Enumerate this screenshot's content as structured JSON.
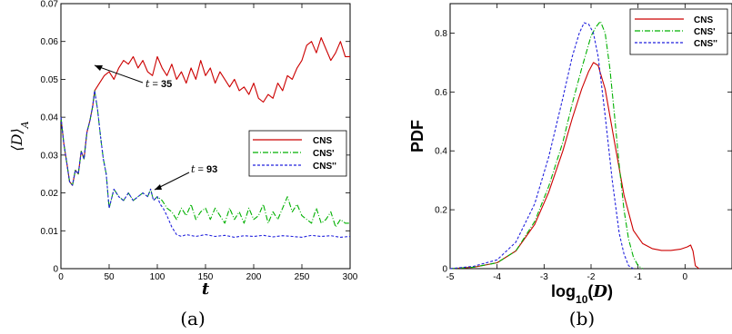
{
  "chart_data": [
    {
      "type": "line",
      "panel_label": "(a)",
      "xlabel": "t",
      "ylabel": "⟨D⟩A",
      "xlim": [
        0,
        300
      ],
      "ylim": [
        0,
        0.07
      ],
      "x_ticks": [
        "0",
        "50",
        "100",
        "150",
        "200",
        "250",
        "300"
      ],
      "y_ticks": [
        "0",
        "0.01",
        "0.02",
        "0.03",
        "0.04",
        "0.05",
        "0.06",
        "0.07"
      ],
      "legend_position": "middle-right",
      "annotations": [
        {
          "text": "t = 35",
          "x": 35,
          "y": 0.047
        },
        {
          "text": "t = 93",
          "x": 93,
          "y": 0.021
        }
      ],
      "series": [
        {
          "name": "CNS",
          "color": "#cc0000",
          "style": "solid",
          "x": [
            0,
            3,
            6,
            9,
            12,
            15,
            18,
            21,
            24,
            27,
            30,
            33,
            35,
            40,
            45,
            50,
            55,
            60,
            65,
            70,
            75,
            80,
            85,
            90,
            95,
            100,
            105,
            110,
            115,
            120,
            125,
            130,
            135,
            140,
            145,
            150,
            155,
            160,
            165,
            170,
            175,
            180,
            185,
            190,
            195,
            200,
            205,
            210,
            215,
            220,
            225,
            230,
            235,
            240,
            245,
            250,
            255,
            260,
            265,
            270,
            275,
            280,
            285,
            290,
            295,
            300
          ],
          "values": [
            0.04,
            0.033,
            0.028,
            0.023,
            0.022,
            0.026,
            0.025,
            0.031,
            0.029,
            0.036,
            0.039,
            0.043,
            0.047,
            0.049,
            0.051,
            0.052,
            0.05,
            0.053,
            0.055,
            0.054,
            0.056,
            0.053,
            0.055,
            0.052,
            0.051,
            0.056,
            0.053,
            0.051,
            0.054,
            0.05,
            0.052,
            0.049,
            0.053,
            0.05,
            0.055,
            0.051,
            0.053,
            0.049,
            0.052,
            0.05,
            0.048,
            0.05,
            0.047,
            0.048,
            0.046,
            0.049,
            0.045,
            0.044,
            0.046,
            0.045,
            0.049,
            0.047,
            0.051,
            0.05,
            0.053,
            0.055,
            0.059,
            0.06,
            0.057,
            0.061,
            0.058,
            0.055,
            0.057,
            0.06,
            0.056,
            0.056
          ]
        },
        {
          "name": "CNS'",
          "color": "#00b000",
          "style": "dash-dot",
          "x": [
            0,
            3,
            6,
            9,
            12,
            15,
            18,
            21,
            24,
            27,
            30,
            33,
            35,
            38,
            41,
            44,
            47,
            50,
            55,
            60,
            65,
            70,
            75,
            80,
            85,
            90,
            93,
            96,
            100,
            105,
            110,
            115,
            120,
            125,
            130,
            135,
            140,
            145,
            150,
            155,
            160,
            165,
            170,
            175,
            180,
            185,
            190,
            195,
            200,
            205,
            210,
            215,
            220,
            225,
            230,
            235,
            240,
            245,
            250,
            255,
            260,
            265,
            270,
            275,
            280,
            285,
            290,
            295,
            300
          ],
          "values": [
            0.04,
            0.033,
            0.028,
            0.023,
            0.022,
            0.026,
            0.025,
            0.031,
            0.029,
            0.036,
            0.039,
            0.043,
            0.047,
            0.042,
            0.035,
            0.029,
            0.025,
            0.016,
            0.021,
            0.019,
            0.018,
            0.02,
            0.018,
            0.019,
            0.02,
            0.019,
            0.021,
            0.018,
            0.019,
            0.018,
            0.016,
            0.015,
            0.013,
            0.016,
            0.014,
            0.017,
            0.013,
            0.015,
            0.016,
            0.013,
            0.016,
            0.014,
            0.012,
            0.016,
            0.013,
            0.015,
            0.012,
            0.016,
            0.013,
            0.014,
            0.017,
            0.012,
            0.015,
            0.013,
            0.016,
            0.019,
            0.015,
            0.017,
            0.014,
            0.013,
            0.012,
            0.016,
            0.012,
            0.013,
            0.015,
            0.011,
            0.013,
            0.012,
            0.012
          ]
        },
        {
          "name": "CNS''",
          "color": "#2222dd",
          "style": "dashed",
          "x": [
            0,
            3,
            6,
            9,
            12,
            15,
            18,
            21,
            24,
            27,
            30,
            33,
            35,
            38,
            41,
            44,
            47,
            50,
            55,
            60,
            65,
            70,
            75,
            80,
            85,
            90,
            93,
            96,
            100,
            103,
            106,
            110,
            115,
            120,
            125,
            130,
            140,
            150,
            160,
            170,
            180,
            190,
            200,
            210,
            220,
            230,
            240,
            250,
            260,
            270,
            280,
            290,
            300
          ],
          "values": [
            0.04,
            0.033,
            0.028,
            0.023,
            0.022,
            0.026,
            0.025,
            0.031,
            0.029,
            0.036,
            0.039,
            0.043,
            0.047,
            0.042,
            0.035,
            0.029,
            0.025,
            0.016,
            0.021,
            0.019,
            0.018,
            0.02,
            0.018,
            0.019,
            0.02,
            0.019,
            0.021,
            0.018,
            0.019,
            0.017,
            0.016,
            0.014,
            0.011,
            0.009,
            0.0085,
            0.009,
            0.0085,
            0.009,
            0.0085,
            0.0088,
            0.0083,
            0.0087,
            0.0085,
            0.0088,
            0.0084,
            0.0087,
            0.0085,
            0.0083,
            0.0088,
            0.0085,
            0.0087,
            0.0083,
            0.0085
          ]
        }
      ]
    },
    {
      "type": "line",
      "panel_label": "(b)",
      "xlabel": "log10(D)",
      "ylabel": "PDF",
      "xlim": [
        -5,
        1
      ],
      "ylim": [
        0,
        0.9
      ],
      "x_ticks": [
        "-5",
        "-4",
        "-3",
        "-2",
        "-1",
        "0"
      ],
      "y_ticks": [
        "0",
        "0.2",
        "0.4",
        "0.6",
        "0.8"
      ],
      "legend_position": "top-right",
      "series": [
        {
          "name": "CNS",
          "color": "#cc0000",
          "style": "solid",
          "x": [
            -5,
            -4.5,
            -4,
            -3.6,
            -3.2,
            -2.9,
            -2.6,
            -2.4,
            -2.2,
            -2.05,
            -1.95,
            -1.85,
            -1.7,
            -1.5,
            -1.3,
            -1.1,
            -0.9,
            -0.7,
            -0.5,
            -0.3,
            -0.1,
            0.05,
            0.12,
            0.17,
            0.22,
            0.3
          ],
          "values": [
            0,
            0.005,
            0.02,
            0.06,
            0.15,
            0.26,
            0.4,
            0.51,
            0.61,
            0.67,
            0.7,
            0.69,
            0.61,
            0.43,
            0.25,
            0.13,
            0.085,
            0.068,
            0.062,
            0.062,
            0.066,
            0.074,
            0.08,
            0.06,
            0.01,
            0
          ]
        },
        {
          "name": "CNS'",
          "color": "#00b000",
          "style": "dash-dot",
          "x": [
            -5,
            -4.5,
            -4,
            -3.6,
            -3.2,
            -2.9,
            -2.6,
            -2.4,
            -2.2,
            -2.0,
            -1.9,
            -1.8,
            -1.7,
            -1.6,
            -1.5,
            -1.4,
            -1.3,
            -1.2,
            -1.1,
            -1.0,
            -0.9
          ],
          "values": [
            0,
            0.005,
            0.02,
            0.06,
            0.16,
            0.28,
            0.43,
            0.56,
            0.68,
            0.79,
            0.82,
            0.84,
            0.8,
            0.68,
            0.52,
            0.35,
            0.2,
            0.1,
            0.04,
            0.01,
            0
          ]
        },
        {
          "name": "CNS''",
          "color": "#2222dd",
          "style": "dashed",
          "x": [
            -5,
            -4.5,
            -4,
            -3.6,
            -3.2,
            -2.9,
            -2.6,
            -2.4,
            -2.25,
            -2.15,
            -2.05,
            -1.95,
            -1.85,
            -1.7,
            -1.55,
            -1.4,
            -1.3,
            -1.2,
            -1.1
          ],
          "values": [
            0,
            0.008,
            0.03,
            0.09,
            0.22,
            0.38,
            0.58,
            0.72,
            0.8,
            0.835,
            0.83,
            0.8,
            0.72,
            0.52,
            0.3,
            0.12,
            0.05,
            0.01,
            0
          ]
        }
      ]
    }
  ]
}
